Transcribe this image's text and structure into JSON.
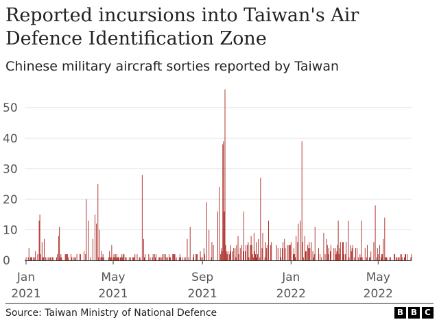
{
  "chart_data": {
    "type": "bar",
    "title": "Reported incursions into Taiwan's Air Defence Identification Zone",
    "subtitle": "Chinese military aircraft sorties reported by Taiwan",
    "xlabel": "",
    "ylabel": "",
    "ylim": [
      0,
      57
    ],
    "yticks": [
      0,
      10,
      20,
      30,
      40,
      50
    ],
    "x_range_days": [
      0,
      531
    ],
    "x_start_date": "2021-01-01",
    "xticks": [
      {
        "day": 0,
        "label1": "Jan",
        "label2": "2021"
      },
      {
        "day": 120,
        "label1": "May",
        "label2": "2021"
      },
      {
        "day": 243,
        "label1": "Sep",
        "label2": "2021"
      },
      {
        "day": 365,
        "label1": "Jan",
        "label2": "2022"
      },
      {
        "day": 485,
        "label1": "May",
        "label2": "2022"
      }
    ],
    "bar_color": "#a8201a",
    "peaks": [
      {
        "day": 4,
        "value": 4
      },
      {
        "day": 13,
        "value": 3
      },
      {
        "day": 18,
        "value": 13
      },
      {
        "day": 19,
        "value": 15
      },
      {
        "day": 22,
        "value": 6
      },
      {
        "day": 25,
        "value": 7
      },
      {
        "day": 45,
        "value": 8
      },
      {
        "day": 46,
        "value": 11
      },
      {
        "day": 55,
        "value": 2
      },
      {
        "day": 80,
        "value": 3
      },
      {
        "day": 83,
        "value": 20
      },
      {
        "day": 86,
        "value": 13
      },
      {
        "day": 92,
        "value": 7
      },
      {
        "day": 95,
        "value": 15
      },
      {
        "day": 97,
        "value": 12
      },
      {
        "day": 99,
        "value": 25
      },
      {
        "day": 101,
        "value": 10
      },
      {
        "day": 104,
        "value": 3
      },
      {
        "day": 115,
        "value": 3
      },
      {
        "day": 118,
        "value": 5
      },
      {
        "day": 135,
        "value": 2
      },
      {
        "day": 160,
        "value": 28
      },
      {
        "day": 162,
        "value": 7
      },
      {
        "day": 175,
        "value": 2
      },
      {
        "day": 190,
        "value": 2
      },
      {
        "day": 205,
        "value": 2
      },
      {
        "day": 222,
        "value": 7
      },
      {
        "day": 226,
        "value": 11
      },
      {
        "day": 240,
        "value": 3
      },
      {
        "day": 245,
        "value": 4
      },
      {
        "day": 249,
        "value": 19
      },
      {
        "day": 252,
        "value": 10
      },
      {
        "day": 258,
        "value": 5
      },
      {
        "day": 264,
        "value": 16
      },
      {
        "day": 266,
        "value": 24
      },
      {
        "day": 269,
        "value": 4
      },
      {
        "day": 271,
        "value": 38
      },
      {
        "day": 272,
        "value": 39
      },
      {
        "day": 273,
        "value": 16
      },
      {
        "day": 274,
        "value": 56
      },
      {
        "day": 276,
        "value": 3
      },
      {
        "day": 288,
        "value": 4
      },
      {
        "day": 292,
        "value": 8
      },
      {
        "day": 297,
        "value": 5
      },
      {
        "day": 300,
        "value": 16
      },
      {
        "day": 306,
        "value": 6
      },
      {
        "day": 310,
        "value": 8
      },
      {
        "day": 314,
        "value": 9
      },
      {
        "day": 317,
        "value": 6
      },
      {
        "day": 320,
        "value": 7
      },
      {
        "day": 323,
        "value": 27
      },
      {
        "day": 326,
        "value": 9
      },
      {
        "day": 330,
        "value": 6
      },
      {
        "day": 334,
        "value": 13
      },
      {
        "day": 338,
        "value": 6
      },
      {
        "day": 345,
        "value": 5
      },
      {
        "day": 350,
        "value": 4
      },
      {
        "day": 356,
        "value": 7
      },
      {
        "day": 360,
        "value": 5
      },
      {
        "day": 365,
        "value": 6
      },
      {
        "day": 369,
        "value": 4
      },
      {
        "day": 372,
        "value": 8
      },
      {
        "day": 375,
        "value": 12
      },
      {
        "day": 378,
        "value": 13
      },
      {
        "day": 380,
        "value": 39
      },
      {
        "day": 384,
        "value": 8
      },
      {
        "day": 390,
        "value": 6
      },
      {
        "day": 398,
        "value": 11
      },
      {
        "day": 403,
        "value": 4
      },
      {
        "day": 410,
        "value": 9
      },
      {
        "day": 414,
        "value": 7
      },
      {
        "day": 420,
        "value": 5
      },
      {
        "day": 430,
        "value": 13
      },
      {
        "day": 436,
        "value": 6
      },
      {
        "day": 444,
        "value": 13
      },
      {
        "day": 450,
        "value": 5
      },
      {
        "day": 456,
        "value": 4
      },
      {
        "day": 462,
        "value": 13
      },
      {
        "day": 467,
        "value": 4
      },
      {
        "day": 470,
        "value": 5
      },
      {
        "day": 475,
        "value": 3
      },
      {
        "day": 479,
        "value": 6
      },
      {
        "day": 481,
        "value": 18
      },
      {
        "day": 484,
        "value": 4
      },
      {
        "day": 487,
        "value": 5
      },
      {
        "day": 492,
        "value": 7
      },
      {
        "day": 494,
        "value": 14
      }
    ]
  },
  "source": "Source: Taiwan Ministry of National Defence",
  "logo": [
    "B",
    "B",
    "C"
  ]
}
